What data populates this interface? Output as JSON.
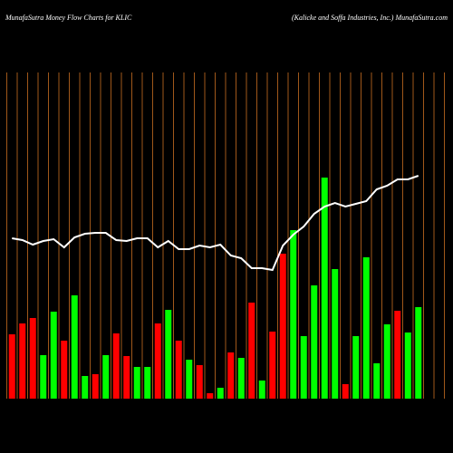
{
  "chart_data": {
    "type": "bar",
    "title": "MunafaSutra  Money Flow  Charts for KLIC",
    "subtitle": "(Kalicke   and Soffa  Industries, Inc.) MunafaSutra.com",
    "categories": [
      null,
      null,
      null,
      null,
      null,
      null,
      null,
      null,
      null,
      null,
      null,
      null,
      null,
      null,
      null,
      null,
      null,
      null,
      null,
      null,
      null,
      null,
      null,
      null,
      null,
      null,
      null,
      null,
      null,
      null,
      null,
      null,
      null,
      null,
      null,
      null,
      null,
      null,
      null,
      null
    ],
    "series": [
      {
        "type": "bar",
        "values": [
          71,
          83,
          89,
          48,
          96,
          64,
          114,
          25,
          27,
          48,
          72,
          47,
          35,
          35,
          83,
          98,
          64,
          43,
          37,
          6,
          12,
          51,
          45,
          106,
          20,
          74,
          160,
          186,
          69,
          125,
          244,
          143,
          16,
          69,
          156,
          39,
          82,
          97,
          73,
          101
        ],
        "colors": [
          "#ff0000",
          "#ff0000",
          "#ff0000",
          "#00ff00",
          "#00ff00",
          "#ff0000",
          "#00ff00",
          "#00ff00",
          "#ff0000",
          "#00ff00",
          "#ff0000",
          "#ff0000",
          "#00ff00",
          "#00ff00",
          "#ff0000",
          "#00ff00",
          "#ff0000",
          "#00ff00",
          "#ff0000",
          "#ff0000",
          "#00ff00",
          "#ff0000",
          "#00ff00",
          "#ff0000",
          "#00ff00",
          "#ff0000",
          "#ff0000",
          "#00ff00",
          "#00ff00",
          "#00ff00",
          "#00ff00",
          "#00ff00",
          "#ff0000",
          "#00ff00",
          "#00ff00",
          "#00ff00",
          "#00ff00",
          "#ff0000",
          "#00ff00",
          "#00ff00"
        ]
      },
      {
        "type": "line",
        "color": "#ffffff",
        "values": [
          177,
          175,
          170,
          174,
          176,
          167,
          178,
          182,
          183,
          183,
          175,
          174,
          177,
          177,
          167,
          174,
          165,
          165,
          169,
          167,
          170,
          158,
          155,
          144,
          144,
          142,
          169,
          181,
          190,
          204,
          212,
          216,
          212,
          215,
          218,
          231,
          235,
          242,
          242,
          246
        ]
      }
    ],
    "ylim": [
      0,
      360
    ],
    "grid": true,
    "grid_color": "#a0581a"
  }
}
